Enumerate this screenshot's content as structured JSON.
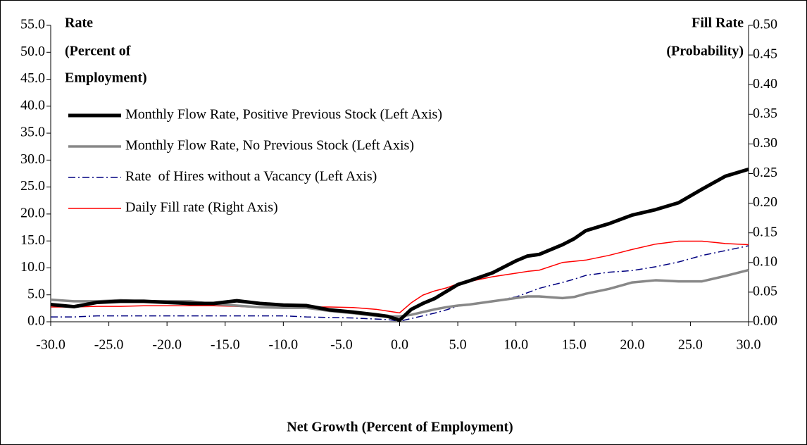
{
  "chart_data": {
    "type": "line",
    "y_label": [
      "Rate",
      "(Percent of",
      "Employment)"
    ],
    "y2_label": [
      "Fill Rate",
      "(Probability)"
    ],
    "x_label": "Net Growth (Percent of Employment)",
    "x": [
      -30,
      -28,
      -26,
      -24,
      -22,
      -20,
      -18,
      -16,
      -14,
      -12,
      -10,
      -8,
      -6,
      -4,
      -2,
      -1,
      0,
      1,
      2,
      3,
      4,
      5,
      6,
      8,
      10,
      11,
      12,
      14,
      15,
      16,
      18,
      20,
      22,
      24,
      26,
      28,
      30
    ],
    "series": [
      {
        "name": "Monthly Flow Rate, Positive Previous Stock (Left Axis)",
        "color": "#000000",
        "axis": "y",
        "values": [
          3.2,
          2.8,
          3.6,
          3.8,
          3.8,
          3.6,
          3.4,
          3.4,
          3.9,
          3.4,
          3.1,
          3.0,
          2.2,
          1.8,
          1.3,
          1.0,
          0.3,
          2.3,
          3.4,
          4.3,
          5.6,
          6.9,
          7.6,
          9.1,
          11.3,
          12.2,
          12.5,
          14.3,
          15.4,
          16.9,
          18.2,
          19.8,
          20.8,
          22.1,
          24.6,
          27.0,
          28.3
        ]
      },
      {
        "name": "Monthly Flow Rate, No Previous Stock (Left Axis)",
        "color": "#888888",
        "axis": "y",
        "values": [
          4.1,
          3.8,
          3.8,
          4.0,
          3.8,
          3.8,
          3.8,
          3.3,
          3.0,
          2.7,
          2.6,
          2.6,
          2.0,
          1.6,
          1.1,
          1.0,
          1.0,
          1.3,
          1.8,
          2.3,
          2.7,
          3.0,
          3.2,
          3.8,
          4.4,
          4.7,
          4.7,
          4.4,
          4.6,
          5.2,
          6.1,
          7.3,
          7.7,
          7.5,
          7.5,
          8.5,
          9.6
        ]
      },
      {
        "name": "Rate  of Hires without a Vacancy (Left Axis)",
        "color": "#000080",
        "axis": "y",
        "values": [
          0.9,
          0.9,
          1.1,
          1.1,
          1.1,
          1.1,
          1.1,
          1.1,
          1.1,
          1.1,
          1.1,
          0.9,
          0.8,
          0.7,
          0.5,
          0.4,
          0.1,
          0.6,
          1.1,
          1.6,
          2.2,
          2.9,
          3.3,
          3.8,
          4.6,
          5.4,
          6.2,
          7.3,
          7.9,
          8.6,
          9.2,
          9.5,
          10.2,
          11.1,
          12.3,
          13.2,
          14.1
        ]
      },
      {
        "name": "Daily Fill rate (Right Axis)",
        "color": "#ff0000",
        "axis": "y2",
        "values": [
          0.025,
          0.025,
          0.026,
          0.026,
          0.027,
          0.027,
          0.027,
          0.027,
          0.026,
          0.024,
          0.023,
          0.025,
          0.025,
          0.024,
          0.021,
          0.018,
          0.015,
          0.032,
          0.045,
          0.052,
          0.057,
          0.064,
          0.068,
          0.076,
          0.082,
          0.085,
          0.087,
          0.1,
          0.102,
          0.104,
          0.112,
          0.122,
          0.131,
          0.136,
          0.136,
          0.132,
          0.13
        ]
      }
    ],
    "xlim": [
      -30,
      30
    ],
    "xticks": [
      {
        "value": -30,
        "label": "-30.0"
      },
      {
        "value": -25,
        "label": "-25.0"
      },
      {
        "value": -20,
        "label": "-20.0"
      },
      {
        "value": -15,
        "label": "-15.0"
      },
      {
        "value": -10,
        "label": "-10.0"
      },
      {
        "value": -5,
        "label": "-5.0"
      },
      {
        "value": 0,
        "label": "0.0"
      },
      {
        "value": 5,
        "label": "5.0"
      },
      {
        "value": 10,
        "label": "10.0"
      },
      {
        "value": 15,
        "label": "15.0"
      },
      {
        "value": 20,
        "label": "20.0"
      },
      {
        "value": 25,
        "label": "25.0"
      },
      {
        "value": 30,
        "label": "30.0"
      }
    ],
    "ylim": [
      0,
      55
    ],
    "yticks": [
      {
        "value": 0,
        "label": "0.0"
      },
      {
        "value": 5,
        "label": "5.0"
      },
      {
        "value": 10,
        "label": "10.0"
      },
      {
        "value": 15,
        "label": "15.0"
      },
      {
        "value": 20,
        "label": "20.0"
      },
      {
        "value": 25,
        "label": "25.0"
      },
      {
        "value": 30,
        "label": "30.0"
      },
      {
        "value": 35,
        "label": "35.0"
      },
      {
        "value": 40,
        "label": "40.0"
      },
      {
        "value": 45,
        "label": "45.0"
      },
      {
        "value": 50,
        "label": "50.0"
      },
      {
        "value": 55,
        "label": "55.0"
      }
    ],
    "y2lim": [
      0,
      0.5
    ],
    "y2ticks": [
      {
        "value": 0,
        "label": "0.00"
      },
      {
        "value": 0.05,
        "label": "0.05"
      },
      {
        "value": 0.1,
        "label": "0.10"
      },
      {
        "value": 0.15,
        "label": "0.15"
      },
      {
        "value": 0.2,
        "label": "0.20"
      },
      {
        "value": 0.25,
        "label": "0.25"
      },
      {
        "value": 0.3,
        "label": "0.30"
      },
      {
        "value": 0.35,
        "label": "0.35"
      },
      {
        "value": 0.4,
        "label": "0.40"
      },
      {
        "value": 0.45,
        "label": "0.45"
      },
      {
        "value": 0.5,
        "label": "0.50"
      }
    ],
    "legend": "upper left"
  }
}
